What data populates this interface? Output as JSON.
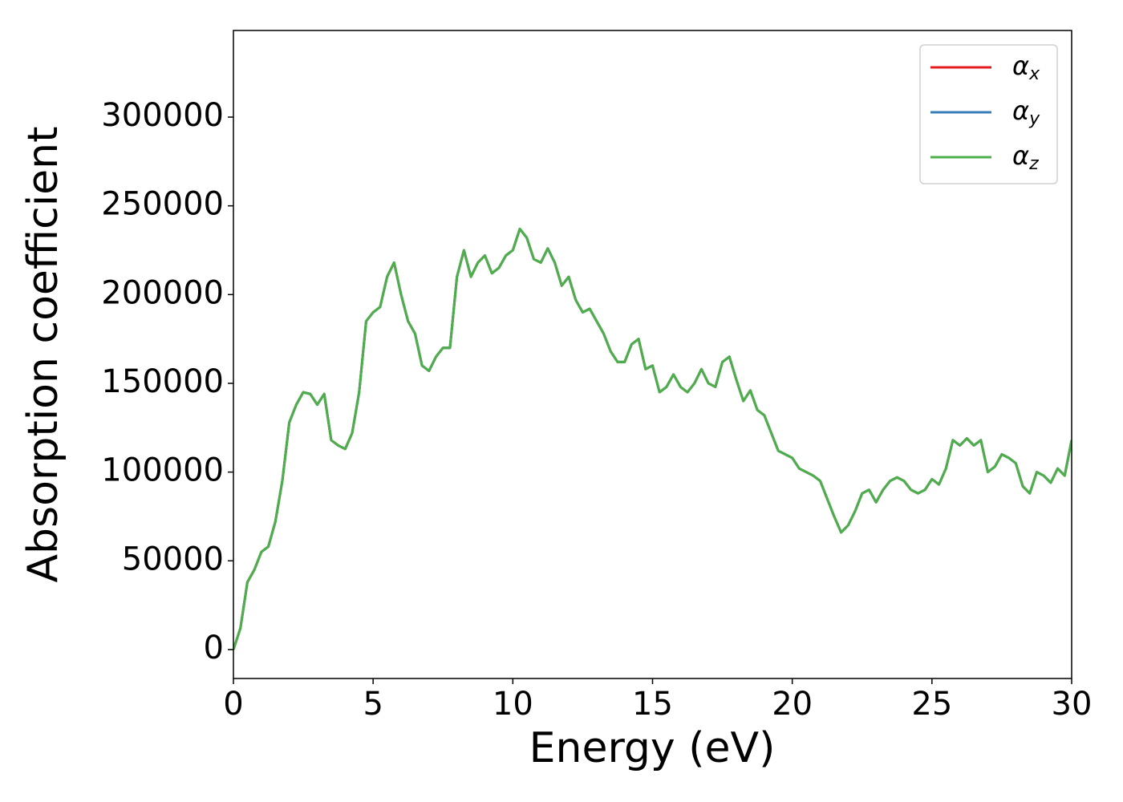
{
  "chart_data": {
    "type": "line",
    "xlabel": "Energy (eV)",
    "ylabel": "Absorption coefficient",
    "x": [
      0,
      0.25,
      0.5,
      0.75,
      1,
      1.25,
      1.5,
      1.75,
      2,
      2.25,
      2.5,
      2.75,
      3,
      3.25,
      3.5,
      3.75,
      4,
      4.25,
      4.5,
      4.75,
      5,
      5.25,
      5.5,
      5.75,
      6,
      6.25,
      6.5,
      6.75,
      7,
      7.25,
      7.5,
      7.75,
      8,
      8.25,
      8.5,
      8.75,
      9,
      9.25,
      9.5,
      9.75,
      10,
      10.25,
      10.5,
      10.75,
      11,
      11.25,
      11.5,
      11.75,
      12,
      12.25,
      12.5,
      12.75,
      13,
      13.25,
      13.5,
      13.75,
      14,
      14.25,
      14.5,
      14.75,
      15,
      15.25,
      15.5,
      15.75,
      16,
      16.25,
      16.5,
      16.75,
      17,
      17.25,
      17.5,
      17.75,
      18,
      18.25,
      18.5,
      18.75,
      19,
      19.25,
      19.5,
      19.75,
      20,
      20.25,
      20.5,
      20.75,
      21,
      21.25,
      21.5,
      21.75,
      22,
      22.25,
      22.5,
      22.75,
      23,
      23.25,
      23.5,
      23.75,
      24,
      24.25,
      24.5,
      24.75,
      25,
      25.25,
      25.5,
      25.75,
      26,
      26.25,
      26.5,
      26.75,
      27,
      27.25,
      27.5,
      27.75,
      28,
      28.25,
      28.5,
      28.75,
      29,
      29.25,
      29.5,
      29.75,
      30
    ],
    "series": [
      {
        "name": "αx",
        "color": "#e41a1c",
        "values": [
          0,
          12000,
          38000,
          45000,
          55000,
          58000,
          72000,
          95000,
          128000,
          138000,
          145000,
          144000,
          138000,
          144000,
          118000,
          115000,
          113000,
          122000,
          145000,
          185000,
          190000,
          193000,
          210000,
          218000,
          200000,
          185000,
          178000,
          160000,
          157000,
          165000,
          170000,
          170000,
          210000,
          225000,
          210000,
          218000,
          222000,
          212000,
          215000,
          222000,
          225000,
          237000,
          232000,
          220000,
          218000,
          226000,
          218000,
          205000,
          210000,
          197000,
          190000,
          192000,
          185000,
          178000,
          168000,
          162000,
          162000,
          172000,
          175000,
          158000,
          160000,
          145000,
          148000,
          155000,
          148000,
          145000,
          150000,
          158000,
          150000,
          148000,
          162000,
          165000,
          152000,
          140000,
          146000,
          135000,
          132000,
          122000,
          112000,
          110000,
          108000,
          102000,
          100000,
          98000,
          95000,
          85000,
          75000,
          66000,
          70000,
          78000,
          88000,
          90000,
          83000,
          90000,
          95000,
          97000,
          95000,
          90000,
          88000,
          90000,
          96000,
          93000,
          102000,
          118000,
          115000,
          119000,
          115000,
          118000,
          100000,
          103000,
          110000,
          108000,
          105000,
          92000,
          88000,
          100000,
          98000,
          94000,
          102000,
          98000,
          118000
        ]
      },
      {
        "name": "αy",
        "color": "#377eb8",
        "values": [
          0,
          12000,
          38000,
          45000,
          55000,
          58000,
          72000,
          95000,
          128000,
          138000,
          145000,
          144000,
          138000,
          144000,
          118000,
          115000,
          113000,
          122000,
          145000,
          185000,
          190000,
          193000,
          210000,
          218000,
          200000,
          185000,
          178000,
          160000,
          157000,
          165000,
          170000,
          170000,
          210000,
          225000,
          210000,
          218000,
          222000,
          212000,
          215000,
          222000,
          225000,
          237000,
          232000,
          220000,
          218000,
          226000,
          218000,
          205000,
          210000,
          197000,
          190000,
          192000,
          185000,
          178000,
          168000,
          162000,
          162000,
          172000,
          175000,
          158000,
          160000,
          145000,
          148000,
          155000,
          148000,
          145000,
          150000,
          158000,
          150000,
          148000,
          162000,
          165000,
          152000,
          140000,
          146000,
          135000,
          132000,
          122000,
          112000,
          110000,
          108000,
          102000,
          100000,
          98000,
          95000,
          85000,
          75000,
          66000,
          70000,
          78000,
          88000,
          90000,
          83000,
          90000,
          95000,
          97000,
          95000,
          90000,
          88000,
          90000,
          96000,
          93000,
          102000,
          118000,
          115000,
          119000,
          115000,
          118000,
          100000,
          103000,
          110000,
          108000,
          105000,
          92000,
          88000,
          100000,
          98000,
          94000,
          102000,
          98000,
          118000
        ]
      },
      {
        "name": "αz",
        "color": "#4daf4a",
        "values": [
          0,
          12000,
          38000,
          45000,
          55000,
          58000,
          72000,
          95000,
          128000,
          138000,
          145000,
          144000,
          138000,
          144000,
          118000,
          115000,
          113000,
          122000,
          145000,
          185000,
          190000,
          193000,
          210000,
          218000,
          200000,
          185000,
          178000,
          160000,
          157000,
          165000,
          170000,
          170000,
          210000,
          225000,
          210000,
          218000,
          222000,
          212000,
          215000,
          222000,
          225000,
          237000,
          232000,
          220000,
          218000,
          226000,
          218000,
          205000,
          210000,
          197000,
          190000,
          192000,
          185000,
          178000,
          168000,
          162000,
          162000,
          172000,
          175000,
          158000,
          160000,
          145000,
          148000,
          155000,
          148000,
          145000,
          150000,
          158000,
          150000,
          148000,
          162000,
          165000,
          152000,
          140000,
          146000,
          135000,
          132000,
          122000,
          112000,
          110000,
          108000,
          102000,
          100000,
          98000,
          95000,
          85000,
          75000,
          66000,
          70000,
          78000,
          88000,
          90000,
          83000,
          90000,
          95000,
          97000,
          95000,
          90000,
          88000,
          90000,
          96000,
          93000,
          102000,
          118000,
          115000,
          119000,
          115000,
          118000,
          100000,
          103000,
          110000,
          108000,
          105000,
          92000,
          88000,
          100000,
          98000,
          94000,
          102000,
          98000,
          118000
        ]
      }
    ],
    "xlim": [
      0,
      30
    ],
    "xticks": [
      0,
      5,
      10,
      15,
      20,
      25,
      30
    ],
    "ylim": [
      -16300,
      348800
    ],
    "yticks": [
      0,
      50000,
      100000,
      150000,
      200000,
      250000,
      300000
    ],
    "grid": false,
    "legend": "upper right"
  }
}
